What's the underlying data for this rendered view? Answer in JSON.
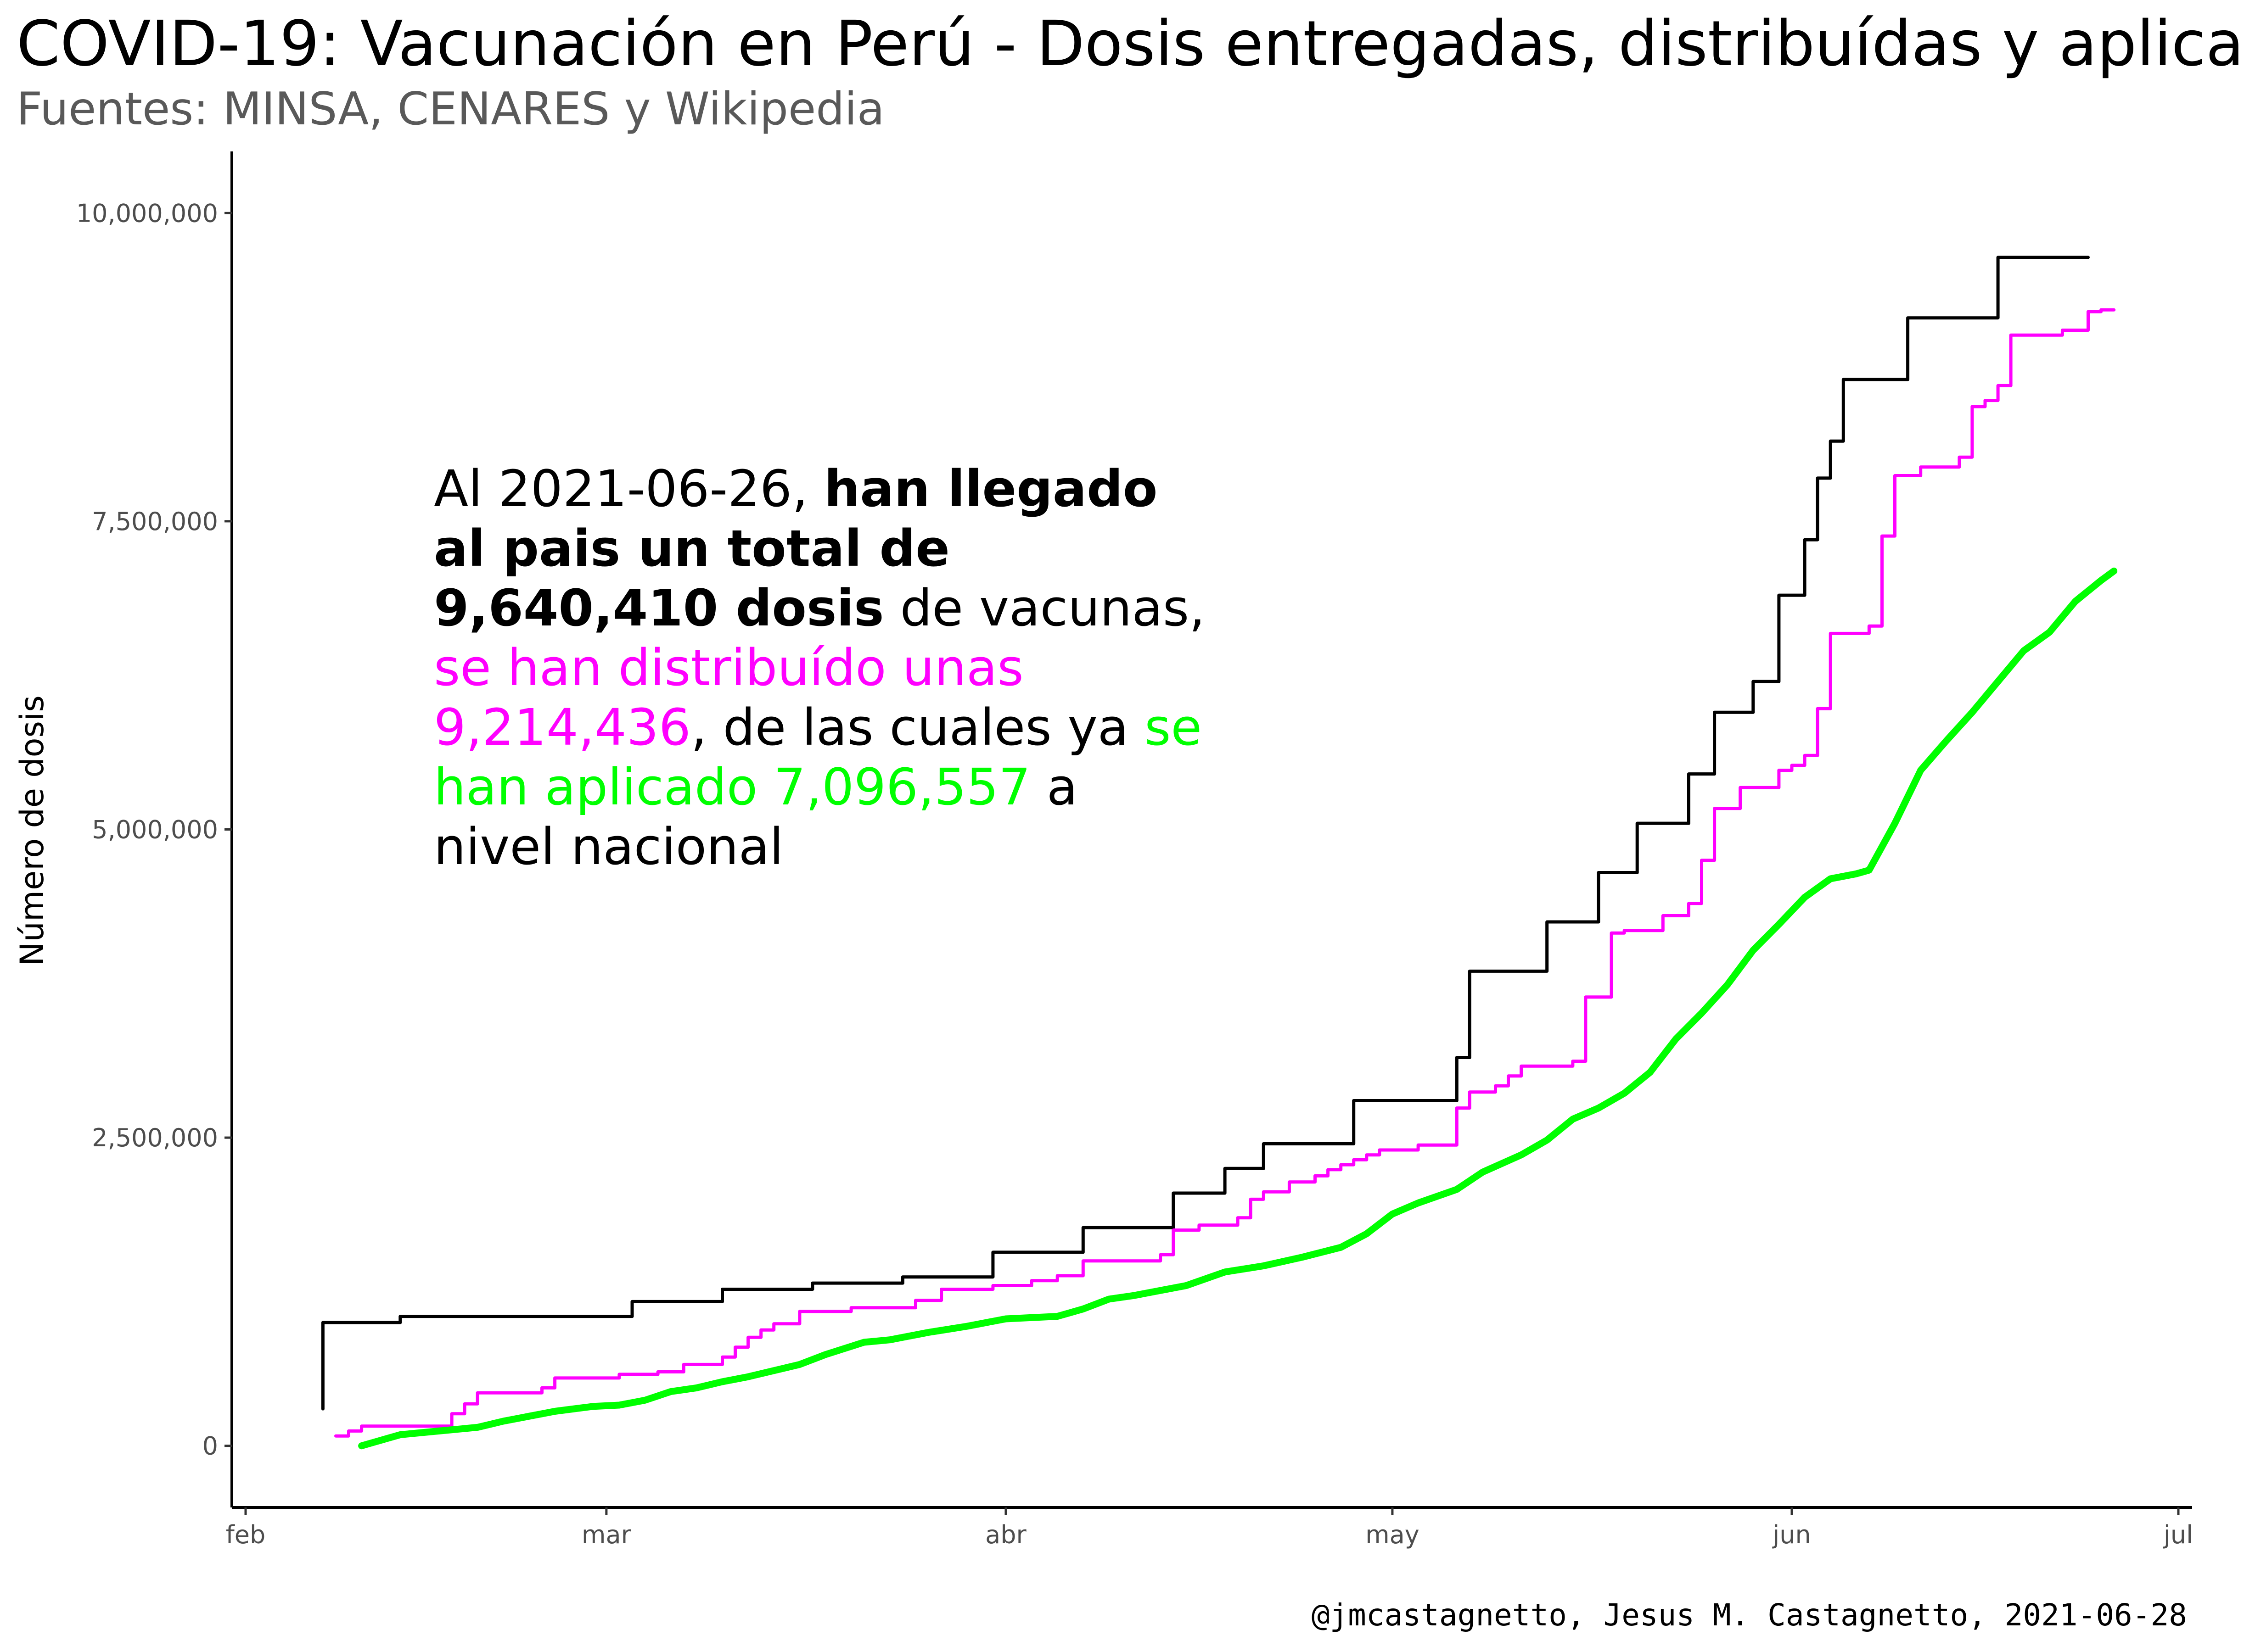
{
  "title": "COVID-19: Vacunación en Perú - Dosis entregadas, distribuídas y aplica",
  "subtitle": "Fuentes: MINSA, CENARES y Wikipedia",
  "caption": "@jmcastagnetto, Jesus M. Castagnetto, 2021-06-28",
  "annotation": {
    "p1": "Al 2021-06-26, ",
    "b1": "han llegado al pais un total de 9,640,410 dosis",
    "p2": " de vacunas, ",
    "m1": "se han distribuído unas 9,214,436",
    "p3": ", de las cuales ya ",
    "g1": "se han aplicado 7,096,557",
    "p4": " a nivel nacional"
  },
  "colors": {
    "entregadas": "#000000",
    "distribuidas": "#ff00ff",
    "aplicadas": "#00ff00"
  },
  "chart_data": {
    "type": "line",
    "title": "COVID-19: Vacunación en Perú - Dosis entregadas, distribuídas y aplica",
    "subtitle": "Fuentes: MINSA, CENARES y Wikipedia",
    "xlabel": "",
    "ylabel": "Número de dosis",
    "xlim": [
      "2021-02-01",
      "2021-07-01"
    ],
    "ylim": [
      -500000,
      10500000
    ],
    "x_ticks": [
      {
        "date": "2021-02-01",
        "label": "feb"
      },
      {
        "date": "2021-03-01",
        "label": "mar"
      },
      {
        "date": "2021-04-01",
        "label": "abr"
      },
      {
        "date": "2021-05-01",
        "label": "may"
      },
      {
        "date": "2021-06-01",
        "label": "jun"
      },
      {
        "date": "2021-07-01",
        "label": "jul"
      }
    ],
    "y_ticks": [
      {
        "value": 0,
        "label": "0"
      },
      {
        "value": 2500000,
        "label": "2,500,000"
      },
      {
        "value": 5000000,
        "label": "5,000,000"
      },
      {
        "value": 7500000,
        "label": "7,500,000"
      },
      {
        "value": 10000000,
        "label": "10,000,000"
      }
    ],
    "grid": false,
    "series": [
      {
        "key": "entregadas",
        "style": "step",
        "points": [
          [
            "2021-02-07",
            300000
          ],
          [
            "2021-02-07",
            1000000
          ],
          [
            "2021-02-13",
            1050000
          ],
          [
            "2021-03-03",
            1170000
          ],
          [
            "2021-03-10",
            1270000
          ],
          [
            "2021-03-17",
            1320000
          ],
          [
            "2021-03-24",
            1370000
          ],
          [
            "2021-03-31",
            1570000
          ],
          [
            "2021-04-07",
            1770000
          ],
          [
            "2021-04-14",
            2050000
          ],
          [
            "2021-04-18",
            2250000
          ],
          [
            "2021-04-21",
            2450000
          ],
          [
            "2021-04-28",
            2800000
          ],
          [
            "2021-05-06",
            3150000
          ],
          [
            "2021-05-07",
            3850000
          ],
          [
            "2021-05-13",
            4250000
          ],
          [
            "2021-05-17",
            4650000
          ],
          [
            "2021-05-20",
            5050000
          ],
          [
            "2021-05-24",
            5450000
          ],
          [
            "2021-05-26",
            5950000
          ],
          [
            "2021-05-29",
            6200000
          ],
          [
            "2021-05-31",
            6900000
          ],
          [
            "2021-06-02",
            7350000
          ],
          [
            "2021-06-03",
            7850000
          ],
          [
            "2021-06-04",
            8150000
          ],
          [
            "2021-06-05",
            8650000
          ],
          [
            "2021-06-10",
            9150000
          ],
          [
            "2021-06-17",
            9640410
          ],
          [
            "2021-06-24",
            9640410
          ]
        ]
      },
      {
        "key": "distribuidas",
        "style": "step",
        "points": [
          [
            "2021-02-08",
            80000
          ],
          [
            "2021-02-09",
            120000
          ],
          [
            "2021-02-10",
            160000
          ],
          [
            "2021-02-16",
            160000
          ],
          [
            "2021-02-17",
            260000
          ],
          [
            "2021-02-18",
            340000
          ],
          [
            "2021-02-19",
            430000
          ],
          [
            "2021-02-24",
            470000
          ],
          [
            "2021-02-25",
            550000
          ],
          [
            "2021-03-02",
            580000
          ],
          [
            "2021-03-05",
            600000
          ],
          [
            "2021-03-07",
            660000
          ],
          [
            "2021-03-10",
            720000
          ],
          [
            "2021-03-11",
            800000
          ],
          [
            "2021-03-12",
            880000
          ],
          [
            "2021-03-13",
            940000
          ],
          [
            "2021-03-14",
            990000
          ],
          [
            "2021-03-16",
            1090000
          ],
          [
            "2021-03-20",
            1120000
          ],
          [
            "2021-03-25",
            1180000
          ],
          [
            "2021-03-27",
            1270000
          ],
          [
            "2021-03-31",
            1300000
          ],
          [
            "2021-04-03",
            1340000
          ],
          [
            "2021-04-05",
            1380000
          ],
          [
            "2021-04-07",
            1500000
          ],
          [
            "2021-04-13",
            1550000
          ],
          [
            "2021-04-14",
            1750000
          ],
          [
            "2021-04-16",
            1790000
          ],
          [
            "2021-04-19",
            1850000
          ],
          [
            "2021-04-20",
            2000000
          ],
          [
            "2021-04-21",
            2060000
          ],
          [
            "2021-04-23",
            2140000
          ],
          [
            "2021-04-25",
            2190000
          ],
          [
            "2021-04-26",
            2240000
          ],
          [
            "2021-04-27",
            2280000
          ],
          [
            "2021-04-28",
            2320000
          ],
          [
            "2021-04-29",
            2360000
          ],
          [
            "2021-04-30",
            2400000
          ],
          [
            "2021-05-03",
            2440000
          ],
          [
            "2021-05-06",
            2740000
          ],
          [
            "2021-05-07",
            2870000
          ],
          [
            "2021-05-09",
            2920000
          ],
          [
            "2021-05-10",
            3000000
          ],
          [
            "2021-05-11",
            3080000
          ],
          [
            "2021-05-15",
            3120000
          ],
          [
            "2021-05-16",
            3640000
          ],
          [
            "2021-05-18",
            4160000
          ],
          [
            "2021-05-19",
            4180000
          ],
          [
            "2021-05-22",
            4300000
          ],
          [
            "2021-05-24",
            4400000
          ],
          [
            "2021-05-25",
            4750000
          ],
          [
            "2021-05-26",
            5170000
          ],
          [
            "2021-05-28",
            5340000
          ],
          [
            "2021-05-31",
            5480000
          ],
          [
            "2021-06-01",
            5520000
          ],
          [
            "2021-06-02",
            5600000
          ],
          [
            "2021-06-03",
            5980000
          ],
          [
            "2021-06-04",
            6590000
          ],
          [
            "2021-06-07",
            6650000
          ],
          [
            "2021-06-08",
            7380000
          ],
          [
            "2021-06-09",
            7870000
          ],
          [
            "2021-06-11",
            7940000
          ],
          [
            "2021-06-14",
            8020000
          ],
          [
            "2021-06-15",
            8430000
          ],
          [
            "2021-06-16",
            8480000
          ],
          [
            "2021-06-17",
            8600000
          ],
          [
            "2021-06-18",
            9010000
          ],
          [
            "2021-06-22",
            9050000
          ],
          [
            "2021-06-24",
            9200000
          ],
          [
            "2021-06-25",
            9214436
          ],
          [
            "2021-06-26",
            9214436
          ]
        ]
      },
      {
        "key": "aplicadas",
        "style": "line",
        "points": [
          [
            "2021-02-10",
            0
          ],
          [
            "2021-02-11",
            30000
          ],
          [
            "2021-02-13",
            90000
          ],
          [
            "2021-02-16",
            120000
          ],
          [
            "2021-02-19",
            150000
          ],
          [
            "2021-02-21",
            200000
          ],
          [
            "2021-02-25",
            280000
          ],
          [
            "2021-02-28",
            320000
          ],
          [
            "2021-03-02",
            330000
          ],
          [
            "2021-03-04",
            370000
          ],
          [
            "2021-03-06",
            440000
          ],
          [
            "2021-03-08",
            470000
          ],
          [
            "2021-03-10",
            520000
          ],
          [
            "2021-03-12",
            560000
          ],
          [
            "2021-03-14",
            610000
          ],
          [
            "2021-03-16",
            660000
          ],
          [
            "2021-03-18",
            740000
          ],
          [
            "2021-03-21",
            840000
          ],
          [
            "2021-03-23",
            860000
          ],
          [
            "2021-03-26",
            920000
          ],
          [
            "2021-03-29",
            970000
          ],
          [
            "2021-04-01",
            1030000
          ],
          [
            "2021-04-05",
            1050000
          ],
          [
            "2021-04-07",
            1110000
          ],
          [
            "2021-04-09",
            1190000
          ],
          [
            "2021-04-11",
            1220000
          ],
          [
            "2021-04-15",
            1300000
          ],
          [
            "2021-04-18",
            1410000
          ],
          [
            "2021-04-21",
            1460000
          ],
          [
            "2021-04-24",
            1530000
          ],
          [
            "2021-04-27",
            1610000
          ],
          [
            "2021-04-29",
            1720000
          ],
          [
            "2021-05-01",
            1880000
          ],
          [
            "2021-05-03",
            1970000
          ],
          [
            "2021-05-06",
            2080000
          ],
          [
            "2021-05-08",
            2220000
          ],
          [
            "2021-05-11",
            2360000
          ],
          [
            "2021-05-13",
            2480000
          ],
          [
            "2021-05-15",
            2650000
          ],
          [
            "2021-05-17",
            2740000
          ],
          [
            "2021-05-19",
            2860000
          ],
          [
            "2021-05-21",
            3030000
          ],
          [
            "2021-05-23",
            3300000
          ],
          [
            "2021-05-25",
            3510000
          ],
          [
            "2021-05-27",
            3740000
          ],
          [
            "2021-05-29",
            4020000
          ],
          [
            "2021-05-31",
            4230000
          ],
          [
            "2021-06-02",
            4450000
          ],
          [
            "2021-06-04",
            4600000
          ],
          [
            "2021-06-06",
            4640000
          ],
          [
            "2021-06-07",
            4670000
          ],
          [
            "2021-06-09",
            5050000
          ],
          [
            "2021-06-11",
            5480000
          ],
          [
            "2021-06-13",
            5720000
          ],
          [
            "2021-06-15",
            5950000
          ],
          [
            "2021-06-17",
            6200000
          ],
          [
            "2021-06-19",
            6450000
          ],
          [
            "2021-06-21",
            6600000
          ],
          [
            "2021-06-23",
            6850000
          ],
          [
            "2021-06-25",
            7020000
          ],
          [
            "2021-06-26",
            7096557
          ]
        ]
      }
    ]
  }
}
